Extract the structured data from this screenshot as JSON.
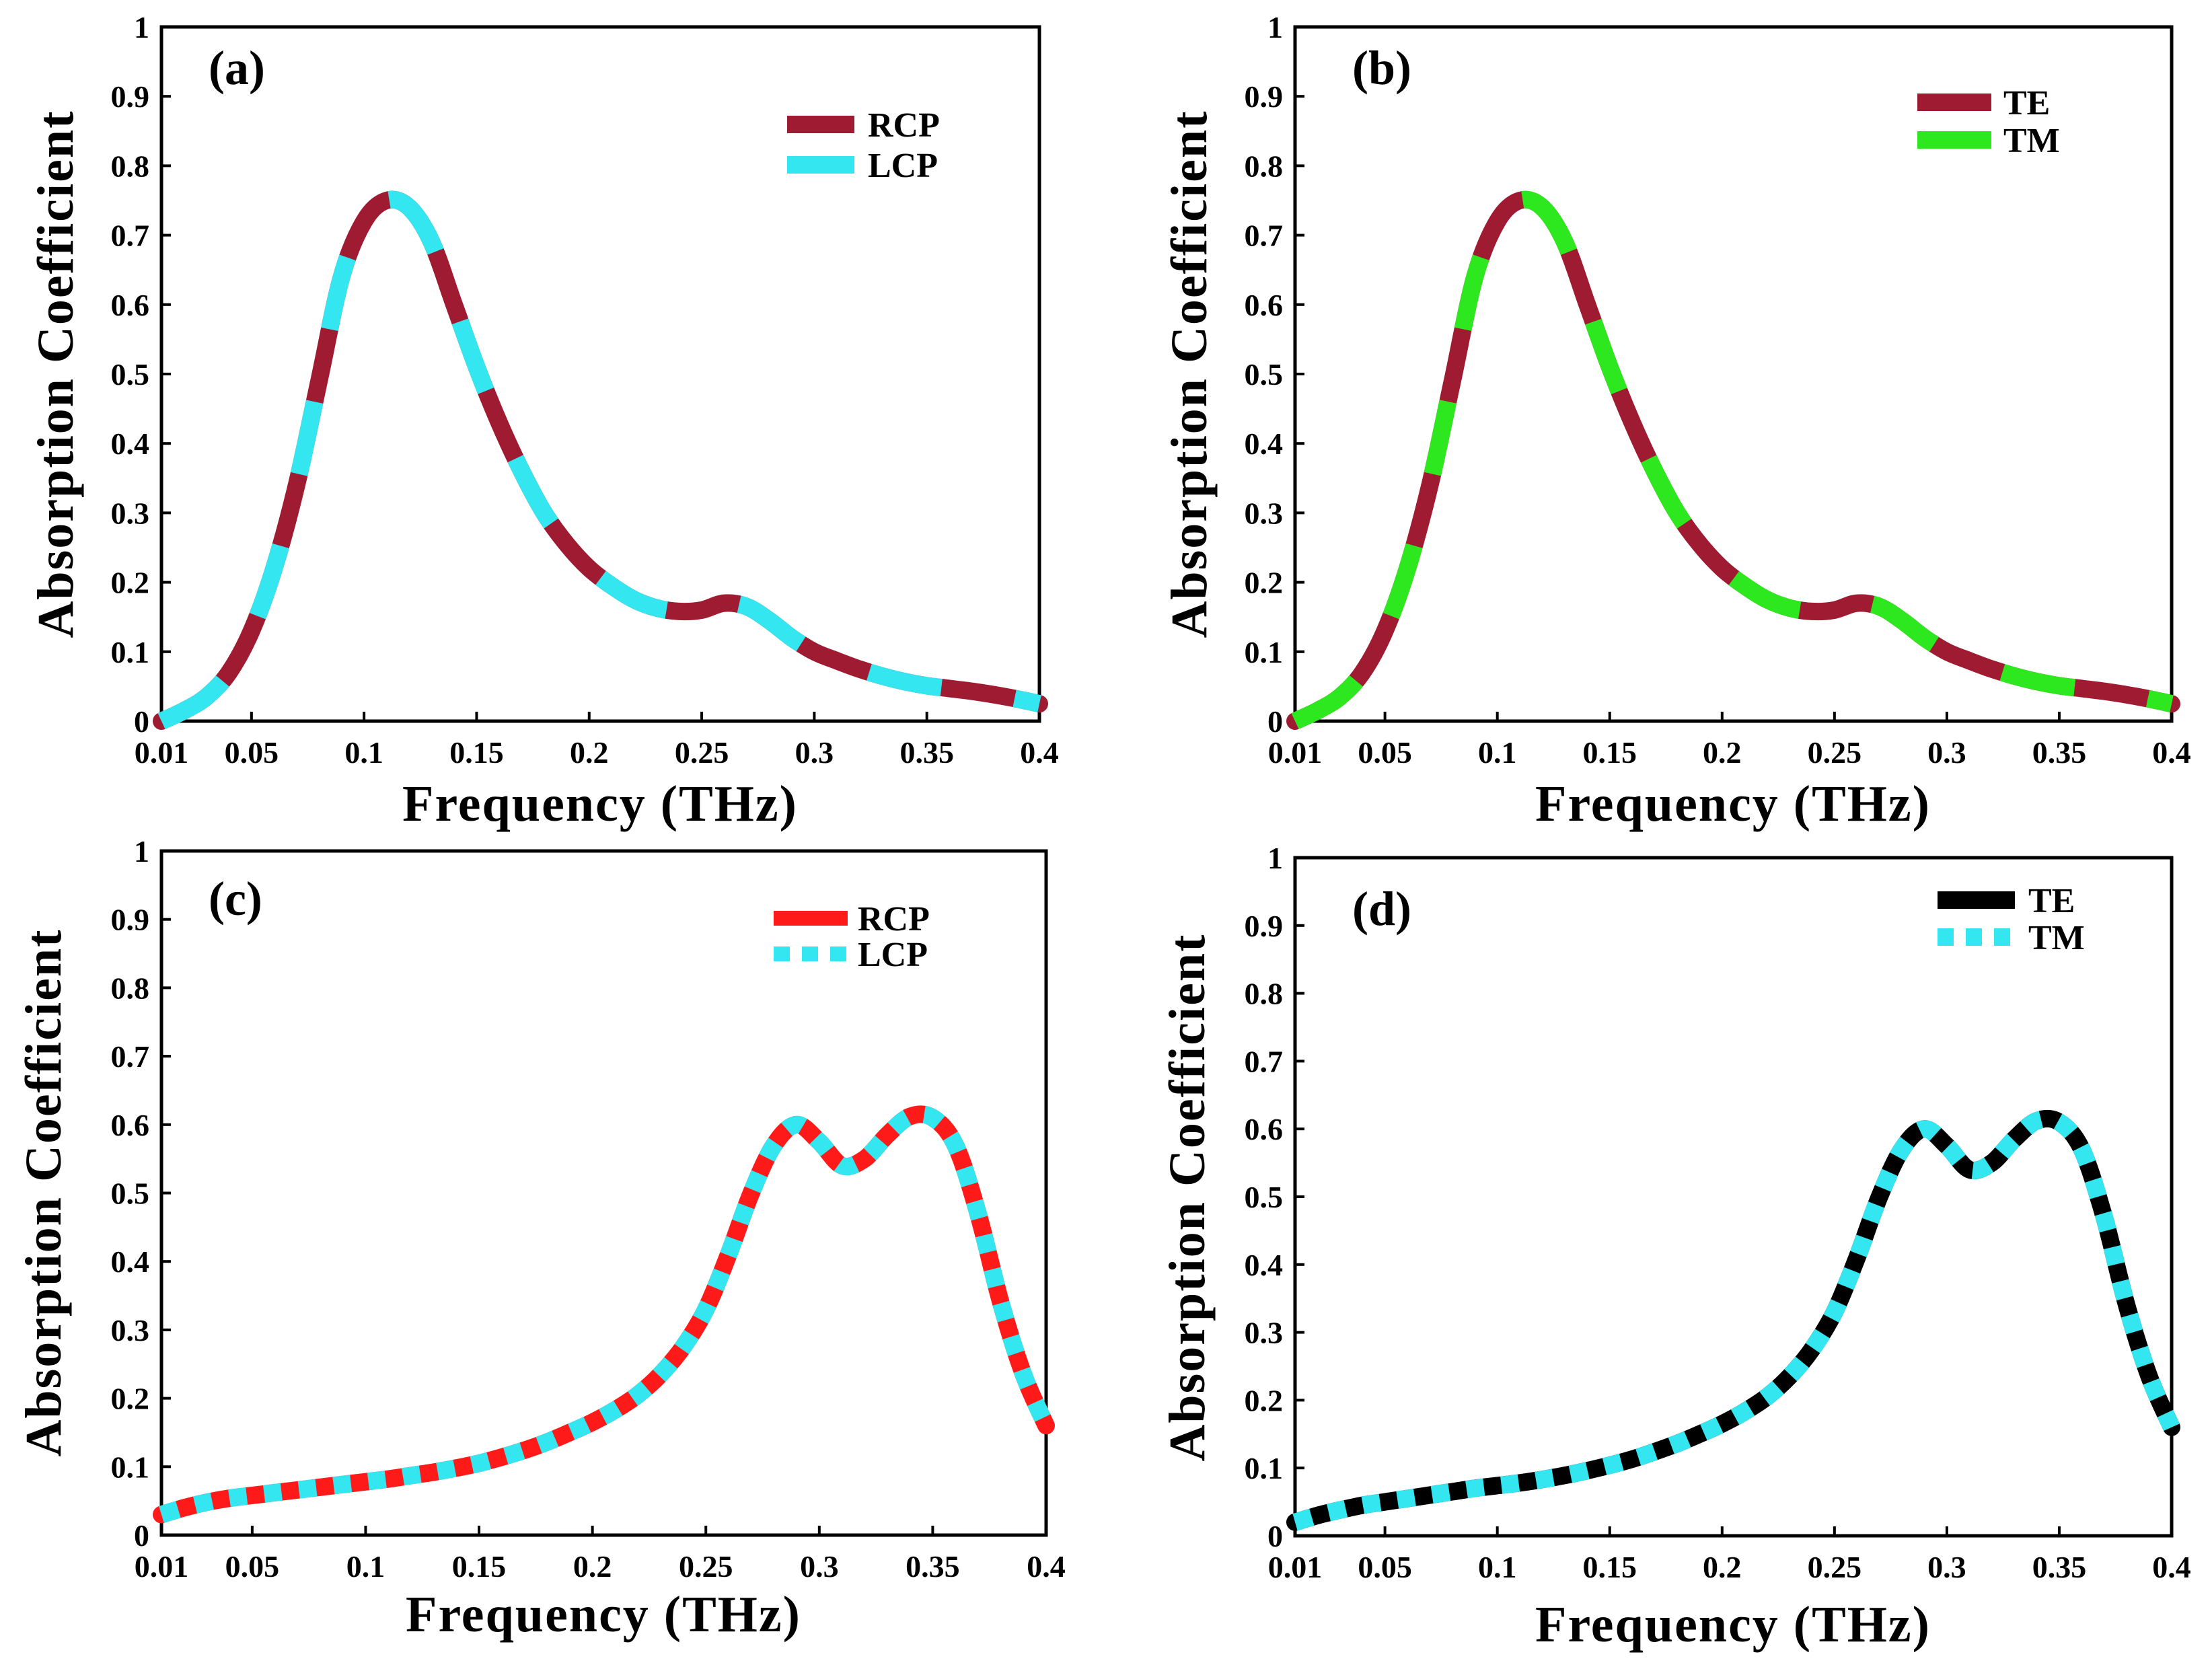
{
  "chart_data": [
    {
      "id": "a",
      "type": "line",
      "panel_label": "(a)",
      "xlabel": "Frequency (THz)",
      "ylabel": "Absorption Coefficient",
      "xlim": [
        0.01,
        0.4
      ],
      "ylim": [
        0,
        1
      ],
      "xticks": [
        "0.01",
        "0.05",
        "0.1",
        "0.15",
        "0.2",
        "0.25",
        "0.3",
        "0.35",
        "0.4"
      ],
      "yticks": [
        "0",
        "0.1",
        "0.2",
        "0.3",
        "0.4",
        "0.5",
        "0.6",
        "0.7",
        "0.8",
        "0.9",
        "1"
      ],
      "legend_position": "top-right",
      "x": [
        0.01,
        0.02,
        0.03,
        0.04,
        0.05,
        0.06,
        0.07,
        0.08,
        0.09,
        0.1,
        0.11,
        0.12,
        0.13,
        0.14,
        0.15,
        0.16,
        0.17,
        0.18,
        0.19,
        0.2,
        0.21,
        0.22,
        0.23,
        0.24,
        0.25,
        0.26,
        0.27,
        0.28,
        0.29,
        0.3,
        0.31,
        0.32,
        0.33,
        0.34,
        0.35,
        0.36,
        0.37,
        0.38,
        0.39,
        0.4
      ],
      "series": [
        {
          "name": "RCP",
          "color": "#9e1b32",
          "style": "solid",
          "values": [
            0.0,
            0.015,
            0.035,
            0.07,
            0.13,
            0.22,
            0.34,
            0.49,
            0.64,
            0.72,
            0.75,
            0.74,
            0.69,
            0.6,
            0.51,
            0.43,
            0.36,
            0.3,
            0.255,
            0.22,
            0.195,
            0.175,
            0.163,
            0.158,
            0.16,
            0.17,
            0.165,
            0.145,
            0.12,
            0.1,
            0.087,
            0.075,
            0.065,
            0.057,
            0.051,
            0.047,
            0.043,
            0.038,
            0.032,
            0.025
          ]
        },
        {
          "name": "LCP",
          "color": "#33e6f0",
          "style": "dashed",
          "values": [
            0.0,
            0.015,
            0.035,
            0.07,
            0.13,
            0.22,
            0.34,
            0.49,
            0.64,
            0.72,
            0.75,
            0.74,
            0.69,
            0.6,
            0.51,
            0.43,
            0.36,
            0.3,
            0.255,
            0.22,
            0.195,
            0.175,
            0.163,
            0.158,
            0.16,
            0.17,
            0.165,
            0.145,
            0.12,
            0.1,
            0.087,
            0.075,
            0.065,
            0.057,
            0.051,
            0.047,
            0.043,
            0.038,
            0.032,
            0.025
          ]
        }
      ]
    },
    {
      "id": "b",
      "type": "line",
      "panel_label": "(b)",
      "xlabel": "Frequency (THz)",
      "ylabel": "Absorption Coefficient",
      "xlim": [
        0.01,
        0.4
      ],
      "ylim": [
        0,
        1
      ],
      "xticks": [
        "0.01",
        "0.05",
        "0.1",
        "0.15",
        "0.2",
        "0.25",
        "0.3",
        "0.35",
        "0.4"
      ],
      "yticks": [
        "0",
        "0.1",
        "0.2",
        "0.3",
        "0.4",
        "0.5",
        "0.6",
        "0.7",
        "0.8",
        "0.9",
        "1"
      ],
      "legend_position": "top-right",
      "x": [
        0.01,
        0.02,
        0.03,
        0.04,
        0.05,
        0.06,
        0.07,
        0.08,
        0.09,
        0.1,
        0.11,
        0.12,
        0.13,
        0.14,
        0.15,
        0.16,
        0.17,
        0.18,
        0.19,
        0.2,
        0.21,
        0.22,
        0.23,
        0.24,
        0.25,
        0.26,
        0.27,
        0.28,
        0.29,
        0.3,
        0.31,
        0.32,
        0.33,
        0.34,
        0.35,
        0.36,
        0.37,
        0.38,
        0.39,
        0.4
      ],
      "series": [
        {
          "name": "TE",
          "color": "#9e1b32",
          "style": "solid",
          "values": [
            0.0,
            0.015,
            0.035,
            0.07,
            0.13,
            0.22,
            0.34,
            0.49,
            0.64,
            0.72,
            0.75,
            0.74,
            0.69,
            0.6,
            0.51,
            0.43,
            0.36,
            0.3,
            0.255,
            0.22,
            0.195,
            0.175,
            0.163,
            0.158,
            0.16,
            0.17,
            0.165,
            0.145,
            0.12,
            0.1,
            0.087,
            0.075,
            0.065,
            0.057,
            0.051,
            0.047,
            0.043,
            0.038,
            0.032,
            0.025
          ]
        },
        {
          "name": "TM",
          "color": "#2ee81f",
          "style": "dashed",
          "values": [
            0.0,
            0.015,
            0.035,
            0.07,
            0.13,
            0.22,
            0.34,
            0.49,
            0.64,
            0.72,
            0.75,
            0.74,
            0.69,
            0.6,
            0.51,
            0.43,
            0.36,
            0.3,
            0.255,
            0.22,
            0.195,
            0.175,
            0.163,
            0.158,
            0.16,
            0.17,
            0.165,
            0.145,
            0.12,
            0.1,
            0.087,
            0.075,
            0.065,
            0.057,
            0.051,
            0.047,
            0.043,
            0.038,
            0.032,
            0.025
          ]
        }
      ]
    },
    {
      "id": "c",
      "type": "line",
      "panel_label": "(c)",
      "xlabel": "Frequency (THz)",
      "ylabel": "Absorption Coefficient",
      "xlim": [
        0.01,
        0.4
      ],
      "ylim": [
        0,
        1
      ],
      "xticks": [
        "0.01",
        "0.05",
        "0.1",
        "0.15",
        "0.2",
        "0.25",
        "0.3",
        "0.35",
        "0.4"
      ],
      "yticks": [
        "0",
        "0.1",
        "0.2",
        "0.3",
        "0.4",
        "0.5",
        "0.6",
        "0.7",
        "0.8",
        "0.9",
        "1"
      ],
      "legend_position": "top-right",
      "x": [
        0.01,
        0.02,
        0.03,
        0.04,
        0.05,
        0.06,
        0.07,
        0.08,
        0.09,
        0.1,
        0.11,
        0.12,
        0.13,
        0.14,
        0.15,
        0.16,
        0.17,
        0.18,
        0.19,
        0.2,
        0.21,
        0.22,
        0.23,
        0.24,
        0.25,
        0.26,
        0.27,
        0.28,
        0.29,
        0.3,
        0.31,
        0.32,
        0.33,
        0.34,
        0.35,
        0.36,
        0.37,
        0.38,
        0.39,
        0.4
      ],
      "series": [
        {
          "name": "RCP",
          "color": "#ff1a1a",
          "style": "solid",
          "values": [
            0.03,
            0.04,
            0.048,
            0.054,
            0.058,
            0.062,
            0.066,
            0.07,
            0.074,
            0.078,
            0.082,
            0.087,
            0.092,
            0.098,
            0.105,
            0.114,
            0.124,
            0.136,
            0.15,
            0.165,
            0.183,
            0.205,
            0.235,
            0.275,
            0.33,
            0.41,
            0.5,
            0.57,
            0.6,
            0.575,
            0.54,
            0.55,
            0.585,
            0.612,
            0.61,
            0.57,
            0.47,
            0.34,
            0.235,
            0.16
          ]
        },
        {
          "name": "LCP",
          "color": "#33e6f0",
          "style": "dashed",
          "values": [
            0.03,
            0.04,
            0.048,
            0.054,
            0.058,
            0.062,
            0.066,
            0.07,
            0.074,
            0.078,
            0.082,
            0.087,
            0.092,
            0.098,
            0.105,
            0.114,
            0.124,
            0.136,
            0.15,
            0.165,
            0.183,
            0.205,
            0.235,
            0.275,
            0.33,
            0.41,
            0.5,
            0.57,
            0.6,
            0.575,
            0.54,
            0.55,
            0.585,
            0.612,
            0.61,
            0.57,
            0.47,
            0.34,
            0.235,
            0.16
          ]
        }
      ]
    },
    {
      "id": "d",
      "type": "line",
      "panel_label": "(d)",
      "xlabel": "Frequency (THz)",
      "ylabel": "Absorption Coefficient",
      "xlim": [
        0.01,
        0.4
      ],
      "ylim": [
        0,
        1
      ],
      "xticks": [
        "0.01",
        "0.05",
        "0.1",
        "0.15",
        "0.2",
        "0.25",
        "0.3",
        "0.35",
        "0.4"
      ],
      "yticks": [
        "0",
        "0.1",
        "0.2",
        "0.3",
        "0.4",
        "0.5",
        "0.6",
        "0.7",
        "0.8",
        "0.9",
        "1"
      ],
      "legend_position": "top-right",
      "x": [
        0.01,
        0.02,
        0.03,
        0.04,
        0.05,
        0.06,
        0.07,
        0.08,
        0.09,
        0.1,
        0.11,
        0.12,
        0.13,
        0.14,
        0.15,
        0.16,
        0.17,
        0.18,
        0.19,
        0.2,
        0.21,
        0.22,
        0.23,
        0.24,
        0.25,
        0.26,
        0.27,
        0.28,
        0.29,
        0.3,
        0.31,
        0.32,
        0.33,
        0.34,
        0.35,
        0.36,
        0.37,
        0.38,
        0.39,
        0.4
      ],
      "series": [
        {
          "name": "TE",
          "color": "#000000",
          "style": "solid",
          "values": [
            0.02,
            0.03,
            0.038,
            0.045,
            0.05,
            0.055,
            0.06,
            0.065,
            0.07,
            0.074,
            0.078,
            0.083,
            0.089,
            0.096,
            0.104,
            0.113,
            0.124,
            0.136,
            0.15,
            0.165,
            0.183,
            0.205,
            0.235,
            0.275,
            0.33,
            0.41,
            0.5,
            0.57,
            0.6,
            0.575,
            0.54,
            0.55,
            0.585,
            0.612,
            0.61,
            0.57,
            0.47,
            0.34,
            0.235,
            0.16
          ]
        },
        {
          "name": "TM",
          "color": "#33e6f0",
          "style": "dashed",
          "values": [
            0.02,
            0.03,
            0.038,
            0.045,
            0.05,
            0.055,
            0.06,
            0.065,
            0.07,
            0.074,
            0.078,
            0.083,
            0.089,
            0.096,
            0.104,
            0.113,
            0.124,
            0.136,
            0.15,
            0.165,
            0.183,
            0.205,
            0.235,
            0.275,
            0.33,
            0.41,
            0.5,
            0.57,
            0.6,
            0.575,
            0.54,
            0.55,
            0.585,
            0.612,
            0.61,
            0.57,
            0.47,
            0.34,
            0.235,
            0.16
          ]
        }
      ]
    }
  ]
}
